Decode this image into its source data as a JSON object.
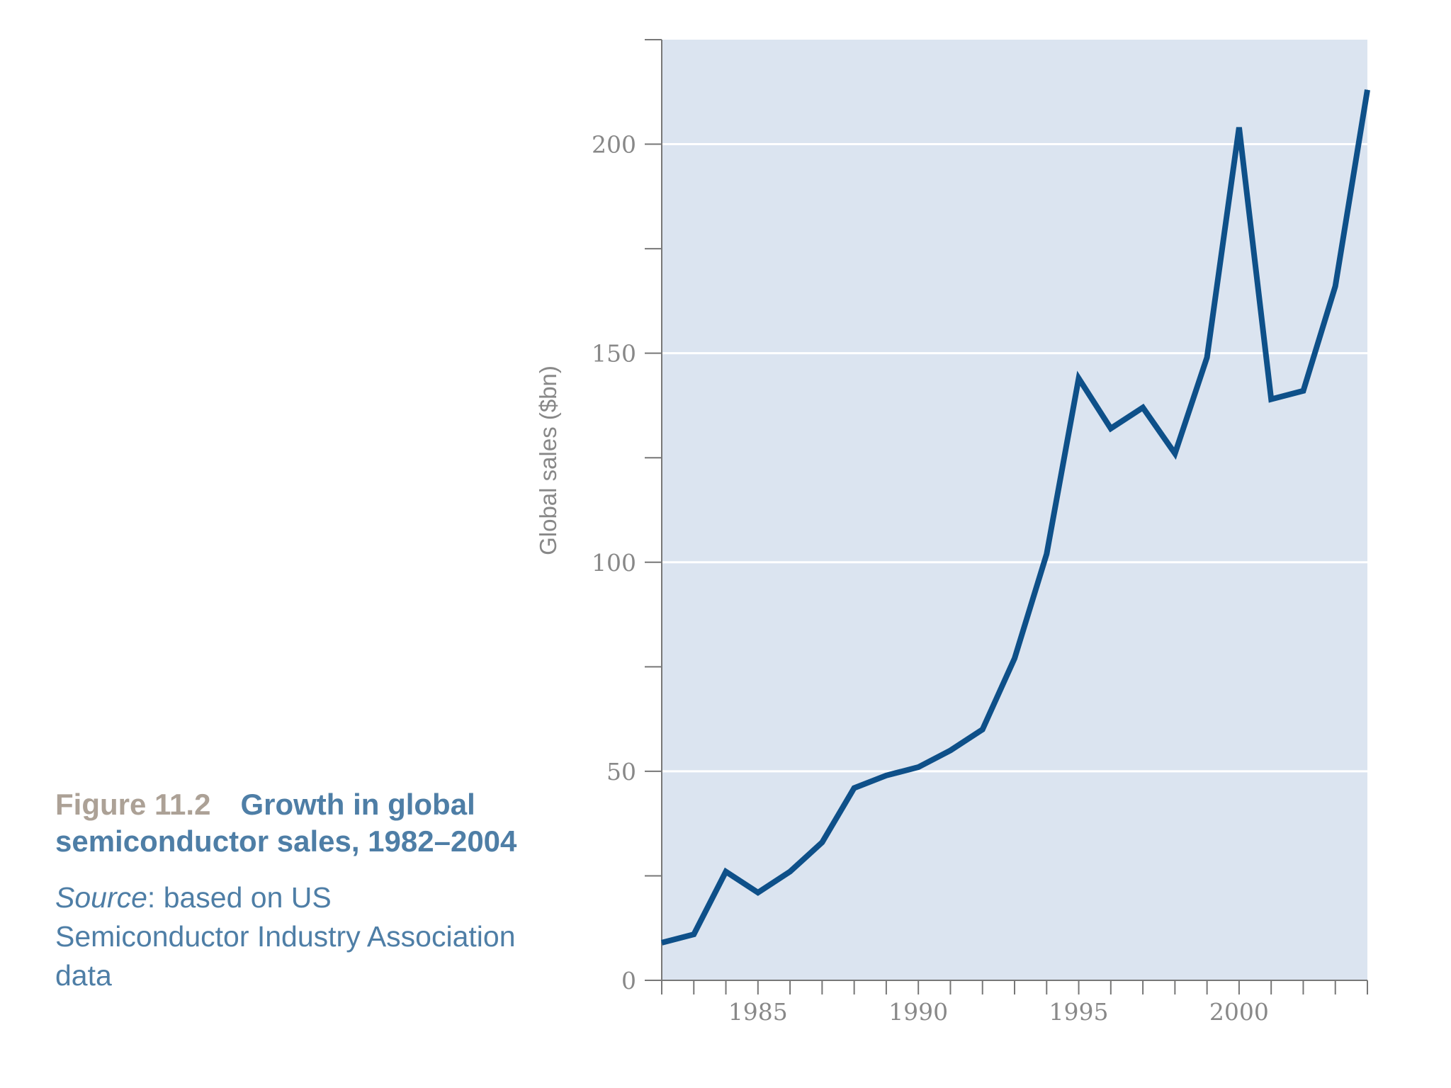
{
  "caption": {
    "figure_number": "Figure 11.2",
    "title": "Growth in global semiconductor sales, 1982–2004",
    "source_label": "Source",
    "source_text": ": based on US Semiconductor Industry Association data"
  },
  "colors": {
    "plot_background": "#dbe4f0",
    "line": "#0e5089",
    "gridline": "#ffffff",
    "axis": "#777777"
  },
  "chart_data": {
    "type": "line",
    "title": "Growth in global semiconductor sales, 1982–2004",
    "xlabel": "",
    "ylabel": "Global sales ($bn)",
    "xlim": [
      1982,
      2004
    ],
    "ylim": [
      0,
      225
    ],
    "grid": true,
    "x_ticks_labeled": [
      1985,
      1990,
      1995,
      2000
    ],
    "y_ticks_labeled": [
      0,
      50,
      100,
      150,
      200
    ],
    "y_ticks_minor": [
      25,
      75,
      125,
      175,
      225
    ],
    "series": [
      {
        "name": "Global semiconductor sales",
        "x": [
          1982,
          1983,
          1984,
          1985,
          1986,
          1987,
          1988,
          1989,
          1990,
          1991,
          1992,
          1993,
          1994,
          1995,
          1996,
          1997,
          1998,
          1999,
          2000,
          2001,
          2002,
          2003,
          2004
        ],
        "values": [
          9,
          11,
          26,
          21,
          26,
          33,
          46,
          49,
          51,
          55,
          60,
          77,
          102,
          144,
          132,
          137,
          126,
          149,
          204,
          139,
          141,
          166,
          213
        ]
      }
    ]
  }
}
